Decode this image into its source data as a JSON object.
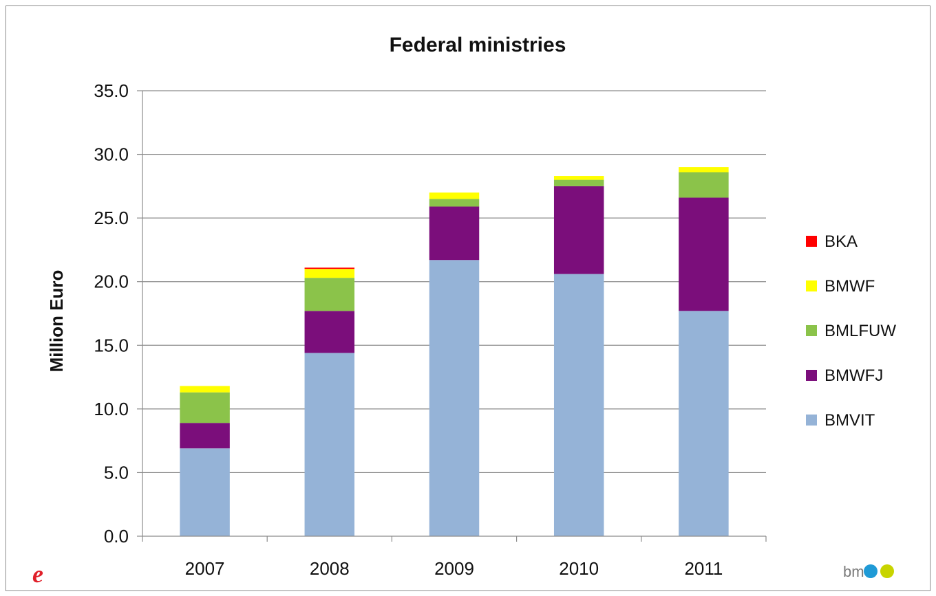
{
  "chart_data": {
    "type": "bar",
    "stacked": true,
    "title": "Federal ministries",
    "xlabel": "",
    "ylabel": "Million Euro",
    "categories": [
      "2007",
      "2008",
      "2009",
      "2010",
      "2011"
    ],
    "ylim": [
      0,
      35
    ],
    "yticks": [
      "0.0",
      "5.0",
      "10.0",
      "15.0",
      "20.0",
      "25.0",
      "30.0",
      "35.0"
    ],
    "grid": true,
    "legend_position": "right",
    "series": [
      {
        "name": "BMVIT",
        "color": "#95b3d7",
        "values": [
          6.9,
          14.4,
          21.7,
          20.6,
          17.7
        ]
      },
      {
        "name": "BMWFJ",
        "color": "#7b0e7b",
        "values": [
          2.0,
          3.3,
          4.2,
          6.9,
          8.9
        ]
      },
      {
        "name": "BMLFUW",
        "color": "#8bc34a",
        "values": [
          2.4,
          2.6,
          0.6,
          0.5,
          2.0
        ]
      },
      {
        "name": "BMWF",
        "color": "#ffff00",
        "values": [
          0.5,
          0.7,
          0.5,
          0.3,
          0.4
        ]
      },
      {
        "name": "BKA",
        "color": "#ff0000",
        "values": [
          0.0,
          0.1,
          0.0,
          0.0,
          0.0
        ]
      }
    ],
    "legend_order": [
      "BKA",
      "BMWF",
      "BMLFUW",
      "BMWFJ",
      "BMVIT"
    ]
  },
  "logos": {
    "left": "e",
    "right": "bmvit"
  }
}
